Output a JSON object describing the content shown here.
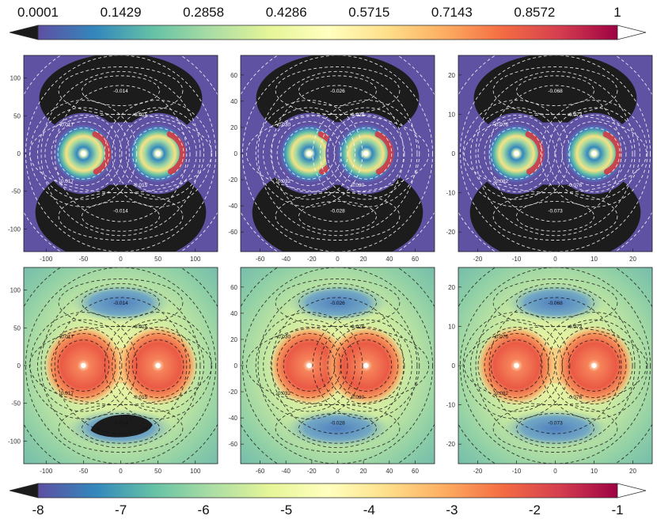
{
  "chart_data": {
    "type": "heatmap",
    "description_note": "Six-panel figure of twin-vortex density maps with dashed contour lines; top row linear color scale, bottom row logarithmic color scale.",
    "colorbar_top": {
      "ticks": [
        "0.0001",
        "0.1429",
        "0.2858",
        "0.4286",
        "0.5715",
        "0.7143",
        "0.8572",
        "1"
      ],
      "range": [
        0.0001,
        1
      ],
      "colormap": "Spectral_r",
      "extend": "both",
      "under_color": "#1b1b1b",
      "over_color": "#ffffff"
    },
    "colorbar_bottom": {
      "ticks": [
        "-8",
        "-7",
        "-6",
        "-5",
        "-4",
        "-3",
        "-2",
        "-1"
      ],
      "range": [
        -8,
        -1
      ],
      "colormap": "Spectral_r",
      "extend": "both",
      "under_color": "#1b1b1b",
      "over_color": "#ffffff"
    },
    "panels": [
      {
        "row": 0,
        "col": 0,
        "xlim": [
          -130,
          130
        ],
        "ylim": [
          -130,
          130
        ],
        "xticks": [
          "-100",
          "-50",
          "0",
          "50",
          "100"
        ],
        "yticks": [
          "100",
          "50",
          "0",
          "-50",
          "-100"
        ],
        "vortex_x": [
          -50,
          50
        ],
        "contour_labels": [
          "-0.014",
          "-0.015",
          "-0.017",
          "-0.017",
          "-0.015",
          "-0.014"
        ]
      },
      {
        "row": 0,
        "col": 1,
        "xlim": [
          -75,
          75
        ],
        "ylim": [
          -75,
          75
        ],
        "xticks": [
          "-60",
          "-40",
          "-20",
          "0",
          "20",
          "40",
          "60"
        ],
        "yticks": [
          "60",
          "40",
          "20",
          "0",
          "-20",
          "-40",
          "-60"
        ],
        "vortex_x": [
          -22,
          22
        ],
        "contour_labels": [
          "-0.026",
          "-0.028",
          "-0.030",
          "-0.032",
          "-0.030",
          "-0.028"
        ]
      },
      {
        "row": 0,
        "col": 2,
        "xlim": [
          -25,
          25
        ],
        "ylim": [
          -25,
          25
        ],
        "xticks": [
          "-20",
          "-10",
          "0",
          "10",
          "20"
        ],
        "yticks": [
          "20",
          "10",
          "0",
          "-10",
          "-20"
        ],
        "vortex_x": [
          -10,
          10
        ],
        "contour_labels": [
          "-0.068",
          "-0.073",
          "-0.076",
          "-0.082",
          "-0.076",
          "-0.073"
        ]
      },
      {
        "row": 1,
        "col": 0,
        "xlim": [
          -130,
          130
        ],
        "ylim": [
          -130,
          130
        ],
        "xticks": [
          "-100",
          "-50",
          "0",
          "50",
          "100"
        ],
        "yticks": [
          "100",
          "50",
          "0",
          "-50",
          "-100"
        ],
        "vortex_x": [
          -50,
          50
        ],
        "contour_labels": [
          "-0.014",
          "-0.015",
          "-0.017",
          "-0.017",
          "-0.015",
          "-0.014"
        ]
      },
      {
        "row": 1,
        "col": 1,
        "xlim": [
          -75,
          75
        ],
        "ylim": [
          -75,
          75
        ],
        "xticks": [
          "-60",
          "-40",
          "-20",
          "0",
          "20",
          "40",
          "60"
        ],
        "yticks": [
          "60",
          "40",
          "20",
          "0",
          "-20",
          "-40",
          "-60"
        ],
        "vortex_x": [
          -22,
          22
        ],
        "contour_labels": [
          "-0.026",
          "-0.028",
          "-0.030",
          "-0.032",
          "-0.030",
          "-0.028"
        ]
      },
      {
        "row": 1,
        "col": 2,
        "xlim": [
          -25,
          25
        ],
        "ylim": [
          -25,
          25
        ],
        "xticks": [
          "-20",
          "-10",
          "0",
          "10",
          "20"
        ],
        "yticks": [
          "20",
          "10",
          "0",
          "-10",
          "-20"
        ],
        "vortex_x": [
          -10,
          10
        ],
        "contour_labels": [
          "-0.068",
          "-0.073",
          "-0.076",
          "-0.082",
          "-0.076",
          "-0.073"
        ]
      }
    ]
  }
}
